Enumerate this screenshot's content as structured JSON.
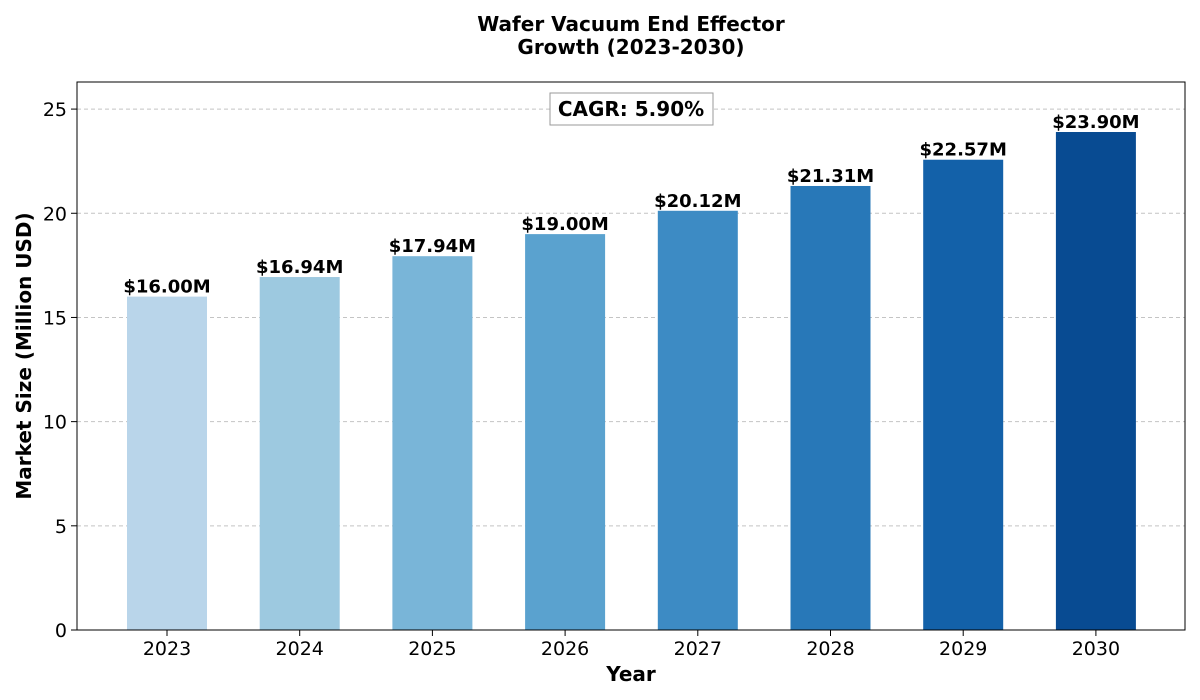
{
  "chart_data": {
    "type": "bar",
    "title": [
      "Wafer Vacuum End Effector",
      "Growth (2023-2030)"
    ],
    "xlabel": "Year",
    "ylabel": "Market Size (Million USD)",
    "categories": [
      "2023",
      "2024",
      "2025",
      "2026",
      "2027",
      "2028",
      "2029",
      "2030"
    ],
    "values": [
      16.0,
      16.94,
      17.94,
      19.0,
      20.12,
      21.31,
      22.57,
      23.9
    ],
    "data_labels": [
      "$16.00M",
      "$16.94M",
      "$17.94M",
      "$19.00M",
      "$20.12M",
      "$21.31M",
      "$22.57M",
      "$23.90M"
    ],
    "colors": [
      "#b9d5ea",
      "#9dc9e0",
      "#79b5d8",
      "#5aa2cf",
      "#3d8bc4",
      "#2878b8",
      "#1361a9",
      "#084b92"
    ],
    "ylim": [
      0,
      26.3
    ],
    "yticks": [
      0,
      5,
      10,
      15,
      20,
      25
    ],
    "grid": true,
    "annotation": "CAGR: 5.90%"
  }
}
